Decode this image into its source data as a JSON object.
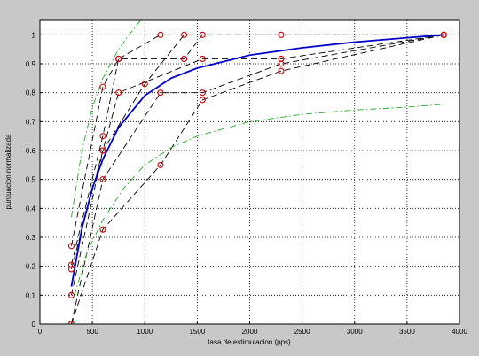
{
  "chart_data": {
    "type": "line",
    "xlabel": "tasa de estimulacion (pps)",
    "ylabel": "puntuacion normalizada",
    "xlim": [
      0,
      4000
    ],
    "xticks": [
      0,
      500,
      1000,
      1500,
      2000,
      2500,
      3000,
      3500,
      4000
    ],
    "ylim": [
      0,
      1.05
    ],
    "yticks": [
      0,
      0.1,
      0.2,
      0.3,
      0.4,
      0.5,
      0.6,
      0.7,
      0.8,
      0.9,
      1
    ],
    "grid": true,
    "series": [
      {
        "color": "#000000",
        "style": "dashed",
        "marker": "circle",
        "marker_color": "#cc0000",
        "x": [
          300,
          600,
          750,
          1150
        ],
        "values": [
          0.27,
          0.82,
          0.917,
          1.0
        ]
      },
      {
        "color": "#000000",
        "style": "dashed",
        "marker": "circle",
        "marker_color": "#cc0000",
        "x": [
          300,
          600,
          750,
          1375,
          1550
        ],
        "values": [
          0.205,
          0.65,
          0.917,
          0.917,
          1.0
        ]
      },
      {
        "color": "#000000",
        "style": "dashed",
        "marker": "circle",
        "marker_color": "#cc0000",
        "x": [
          300,
          600,
          750,
          1550,
          2300,
          3850
        ],
        "values": [
          0.19,
          0.6,
          0.8,
          0.917,
          0.917,
          1.0
        ]
      },
      {
        "color": "#000000",
        "style": "dashed",
        "marker": "circle",
        "marker_color": "#cc0000",
        "x": [
          300,
          600,
          1000,
          1375,
          2300,
          3850
        ],
        "values": [
          0.1,
          0.6,
          0.83,
          1.0,
          1.0,
          1.0
        ]
      },
      {
        "color": "#000000",
        "style": "dashed",
        "marker": "circle",
        "marker_color": "#cc0000",
        "x": [
          300,
          600,
          1150,
          1550,
          2300,
          3850
        ],
        "values": [
          0.0,
          0.5,
          0.8,
          0.8,
          0.9,
          1.0
        ]
      },
      {
        "color": "#000000",
        "style": "dashed",
        "marker": "circle",
        "marker_color": "#cc0000",
        "x": [
          300,
          600,
          1150,
          1550,
          2300,
          3850
        ],
        "values": [
          0.0,
          0.327,
          0.55,
          0.775,
          0.875,
          1.0
        ]
      },
      {
        "color": "#0000cc",
        "style": "solid",
        "x": [
          300,
          400,
          500,
          600,
          750,
          1000,
          1250,
          1500,
          2000,
          2500,
          3000,
          3500,
          3850
        ],
        "values": [
          0.13,
          0.33,
          0.47,
          0.57,
          0.68,
          0.79,
          0.85,
          0.885,
          0.93,
          0.955,
          0.975,
          0.99,
          1.0
        ]
      },
      {
        "color": "#22aa22",
        "style": "dashdot",
        "x": [
          300,
          400,
          500,
          600,
          750,
          850,
          960
        ],
        "values": [
          0.37,
          0.6,
          0.75,
          0.85,
          0.95,
          1.0,
          1.05
        ]
      },
      {
        "color": "#22aa22",
        "style": "dashdot",
        "x": [
          330,
          450,
          600,
          800,
          1000,
          1250,
          1500,
          2000,
          2500,
          3000,
          3500,
          3850
        ],
        "values": [
          0.1,
          0.25,
          0.36,
          0.47,
          0.55,
          0.61,
          0.65,
          0.7,
          0.725,
          0.74,
          0.75,
          0.76
        ]
      }
    ]
  }
}
